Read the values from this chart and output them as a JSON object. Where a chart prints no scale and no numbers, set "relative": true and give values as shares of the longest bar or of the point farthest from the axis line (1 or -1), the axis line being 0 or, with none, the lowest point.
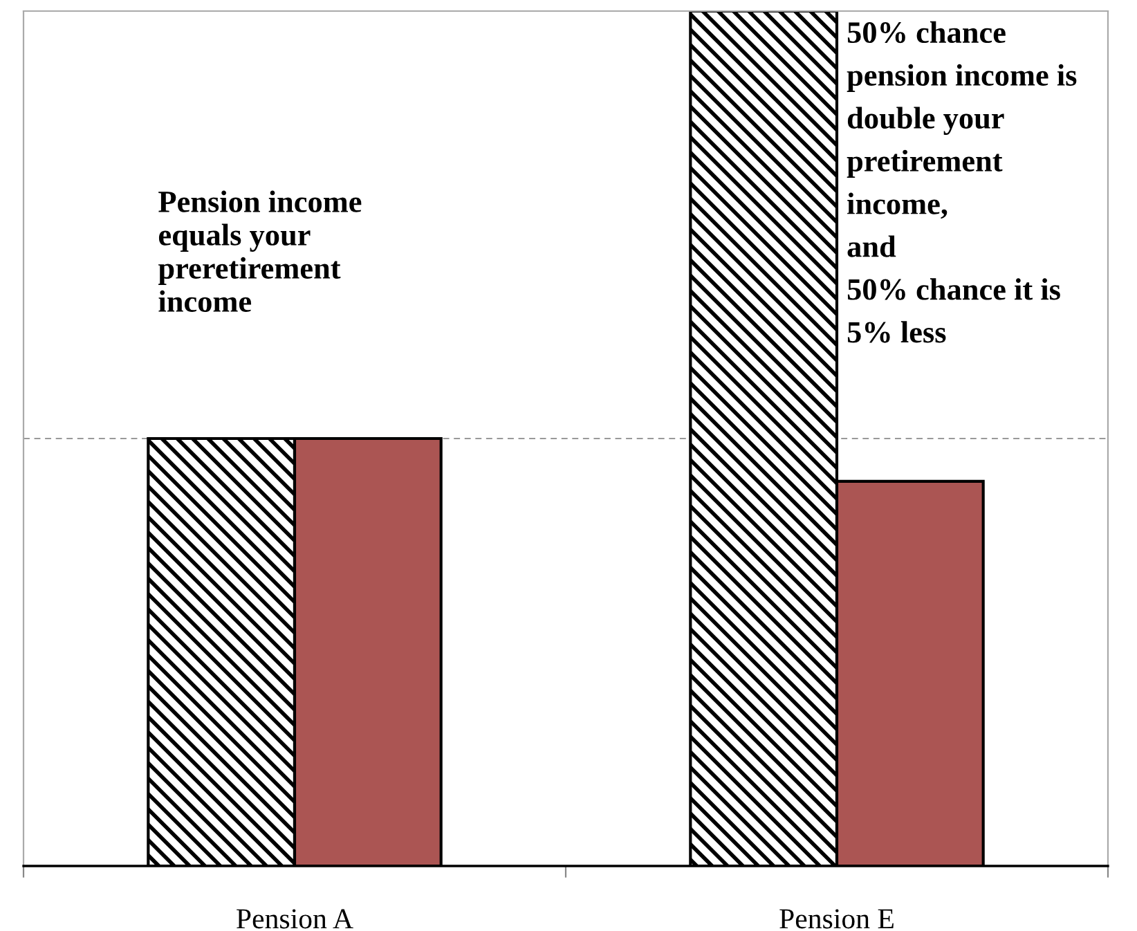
{
  "chart_data": {
    "type": "bar",
    "relative": true,
    "categories": [
      "Pension A",
      "Pension E"
    ],
    "series": [
      {
        "color": "#000000",
        "values": [
          0.5,
          1.0
        ]
      },
      {
        "color": "#ab5553",
        "values": [
          0.5,
          0.45
        ]
      }
    ],
    "ref_lines": [
      {
        "axis": "y",
        "value": 0.5,
        "color": "#999999",
        "line_style": "dashed"
      }
    ],
    "annotations": [
      "Pension income\nequals your\npreretirement\nincome",
      "50% chance\npension income is\ndouble your\npretirement\nincome,\nand\n50% chance it is\n5% less"
    ],
    "grid": false,
    "legend": false
  }
}
